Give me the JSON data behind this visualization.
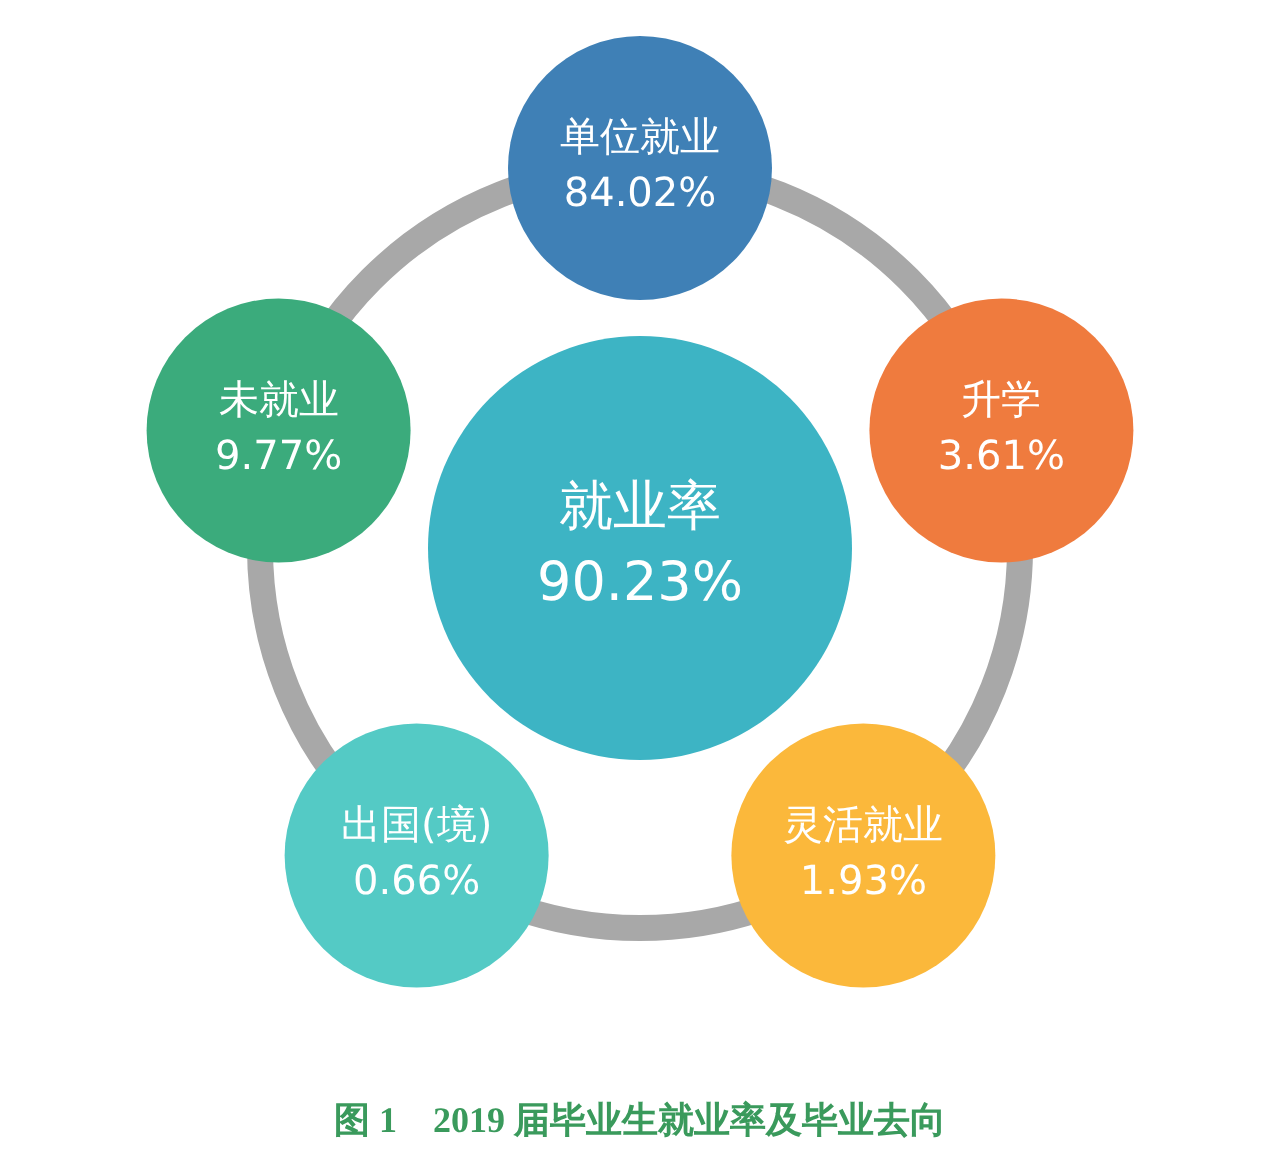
{
  "chart_data": {
    "type": "other",
    "title": "图 1　2019 届毕业生就业率及毕业去向",
    "categories": [
      "就业率",
      "单位就业",
      "升学",
      "灵活就业",
      "出国(境)",
      "未就业"
    ],
    "values": [
      90.23,
      84.02,
      3.61,
      1.93,
      0.66,
      9.77
    ],
    "value_labels": [
      "90.23%",
      "84.02%",
      "3.61%",
      "1.93%",
      "0.66%",
      "9.77%"
    ],
    "colors": [
      "#3db4c4",
      "#3f80b6",
      "#ef7b3e",
      "#fbb83b",
      "#54cac5",
      "#3bab7c"
    ]
  }
}
